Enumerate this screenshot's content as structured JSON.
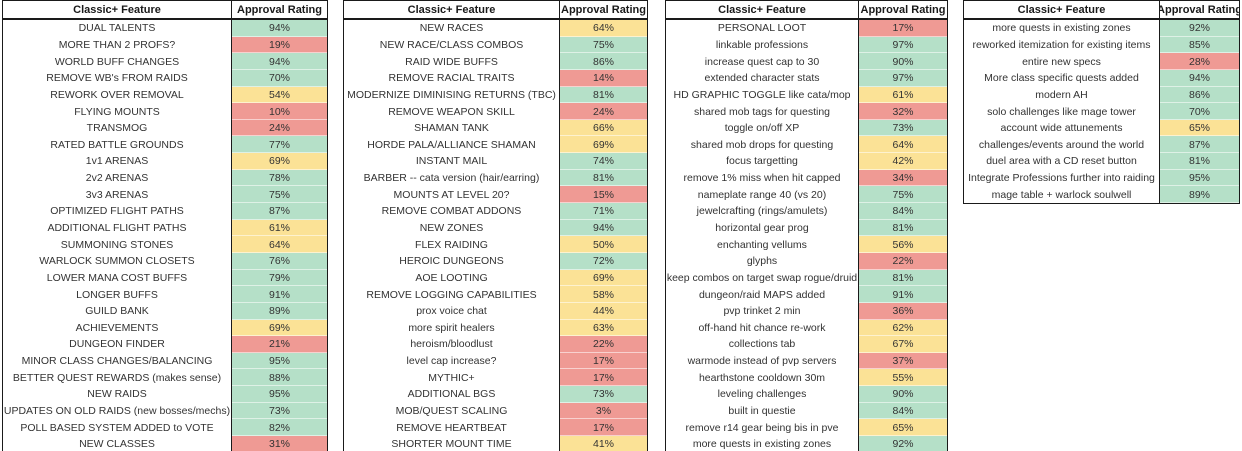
{
  "columns": {
    "feature": "Classic+ Feature",
    "approval": "Approval Rating"
  },
  "colors": {
    "approve_high": "#b5e0c8",
    "approve_mid": "#fbe296",
    "approve_low": "#ef9a94",
    "border": "#1a1a1a",
    "text": "#333333"
  },
  "thresholds": {
    "high_min": 70,
    "mid_min": 40
  },
  "tables": [
    {
      "rows": [
        {
          "feature": "DUAL TALENTS",
          "approval": "94%"
        },
        {
          "feature": "MORE THAN 2 PROFS?",
          "approval": "19%"
        },
        {
          "feature": "WORLD BUFF CHANGES",
          "approval": "94%"
        },
        {
          "feature": "REMOVE WB's FROM RAIDS",
          "approval": "70%"
        },
        {
          "feature": "REWORK OVER REMOVAL",
          "approval": "54%"
        },
        {
          "feature": "FLYING MOUNTS",
          "approval": "10%"
        },
        {
          "feature": "TRANSMOG",
          "approval": "24%"
        },
        {
          "feature": "RATED BATTLE GROUNDS",
          "approval": "77%"
        },
        {
          "feature": "1v1 ARENAS",
          "approval": "69%"
        },
        {
          "feature": "2v2 ARENAS",
          "approval": "78%"
        },
        {
          "feature": "3v3 ARENAS",
          "approval": "75%"
        },
        {
          "feature": "OPTIMIZED FLIGHT PATHS",
          "approval": "87%"
        },
        {
          "feature": "ADDITIONAL FLIGHT PATHS",
          "approval": "61%"
        },
        {
          "feature": "SUMMONING STONES",
          "approval": "64%"
        },
        {
          "feature": "WARLOCK SUMMON CLOSETS",
          "approval": "76%"
        },
        {
          "feature": "LOWER MANA COST BUFFS",
          "approval": "79%"
        },
        {
          "feature": "LONGER BUFFS",
          "approval": "91%"
        },
        {
          "feature": "GUILD BANK",
          "approval": "89%"
        },
        {
          "feature": "ACHIEVEMENTS",
          "approval": "69%"
        },
        {
          "feature": "DUNGEON FINDER",
          "approval": "21%"
        },
        {
          "feature": "MINOR CLASS CHANGES/BALANCING",
          "approval": "95%"
        },
        {
          "feature": "BETTER QUEST REWARDS (makes sense)",
          "approval": "88%"
        },
        {
          "feature": "NEW RAIDS",
          "approval": "95%"
        },
        {
          "feature": "UPDATES ON OLD RAIDS (new bosses/mechs)",
          "approval": "73%"
        },
        {
          "feature": "POLL BASED SYSTEM ADDED to VOTE",
          "approval": "82%"
        },
        {
          "feature": "NEW CLASSES",
          "approval": "31%"
        }
      ]
    },
    {
      "rows": [
        {
          "feature": "NEW RACES",
          "approval": "64%"
        },
        {
          "feature": "NEW RACE/CLASS COMBOS",
          "approval": "75%"
        },
        {
          "feature": "RAID WIDE BUFFS",
          "approval": "86%"
        },
        {
          "feature": "REMOVE RACIAL TRAITS",
          "approval": "14%"
        },
        {
          "feature": "MODERNIZE DIMINISING RETURNS (TBC)",
          "approval": "81%"
        },
        {
          "feature": "REMOVE WEAPON SKILL",
          "approval": "24%"
        },
        {
          "feature": "SHAMAN TANK",
          "approval": "66%"
        },
        {
          "feature": "HORDE PALA/ALLIANCE SHAMAN",
          "approval": "69%"
        },
        {
          "feature": "INSTANT MAIL",
          "approval": "74%"
        },
        {
          "feature": "BARBER -- cata version (hair/earring)",
          "approval": "81%"
        },
        {
          "feature": "MOUNTS AT LEVEL 20?",
          "approval": "15%"
        },
        {
          "feature": "REMOVE COMBAT ADDONS",
          "approval": "71%"
        },
        {
          "feature": "NEW ZONES",
          "approval": "94%"
        },
        {
          "feature": "FLEX RAIDING",
          "approval": "50%"
        },
        {
          "feature": "HEROIC DUNGEONS",
          "approval": "72%"
        },
        {
          "feature": "AOE LOOTING",
          "approval": "69%"
        },
        {
          "feature": "REMOVE LOGGING CAPABILITIES",
          "approval": "58%"
        },
        {
          "feature": "prox voice chat",
          "approval": "44%"
        },
        {
          "feature": "more spirit healers",
          "approval": "63%"
        },
        {
          "feature": "heroism/bloodlust",
          "approval": "22%"
        },
        {
          "feature": "level cap increase?",
          "approval": "17%"
        },
        {
          "feature": "MYTHIC+",
          "approval": "17%"
        },
        {
          "feature": "ADDITIONAL BGS",
          "approval": "73%"
        },
        {
          "feature": "MOB/QUEST SCALING",
          "approval": "3%"
        },
        {
          "feature": "REMOVE HEARTBEAT",
          "approval": "17%"
        },
        {
          "feature": "SHORTER MOUNT TIME",
          "approval": "41%"
        }
      ]
    },
    {
      "rows": [
        {
          "feature": "PERSONAL LOOT",
          "approval": "17%"
        },
        {
          "feature": "linkable professions",
          "approval": "97%"
        },
        {
          "feature": "increase quest cap to 30",
          "approval": "90%"
        },
        {
          "feature": "extended character stats",
          "approval": "97%"
        },
        {
          "feature": "HD GRAPHIC TOGGLE like cata/mop",
          "approval": "61%"
        },
        {
          "feature": "shared mob tags for questing",
          "approval": "32%"
        },
        {
          "feature": "toggle on/off XP",
          "approval": "73%"
        },
        {
          "feature": "shared mob drops for questing",
          "approval": "64%"
        },
        {
          "feature": "focus targetting",
          "approval": "42%"
        },
        {
          "feature": "remove 1% miss when hit capped",
          "approval": "34%"
        },
        {
          "feature": "nameplate range 40 (vs 20)",
          "approval": "75%"
        },
        {
          "feature": "jewelcrafting (rings/amulets)",
          "approval": "84%"
        },
        {
          "feature": "horizontal gear prog",
          "approval": "81%"
        },
        {
          "feature": "enchanting vellums",
          "approval": "56%"
        },
        {
          "feature": "glyphs",
          "approval": "22%"
        },
        {
          "feature": "keep combos on target swap rogue/druid",
          "approval": "81%"
        },
        {
          "feature": "dungeon/raid MAPS added",
          "approval": "91%"
        },
        {
          "feature": "pvp trinket 2 min",
          "approval": "36%"
        },
        {
          "feature": "off-hand hit chance re-work",
          "approval": "62%"
        },
        {
          "feature": "collections tab",
          "approval": "67%"
        },
        {
          "feature": "warmode instead of pvp servers",
          "approval": "37%"
        },
        {
          "feature": "hearthstone cooldown 30m",
          "approval": "55%"
        },
        {
          "feature": "leveling challenges",
          "approval": "90%"
        },
        {
          "feature": "built in questie",
          "approval": "84%"
        },
        {
          "feature": "remove r14 gear being bis in pve",
          "approval": "65%"
        },
        {
          "feature": "more quests in existing zones",
          "approval": "92%"
        }
      ]
    },
    {
      "rows": [
        {
          "feature": "more quests in existing zones",
          "approval": "92%"
        },
        {
          "feature": "reworked itemization for existing items",
          "approval": "85%"
        },
        {
          "feature": "entire new specs",
          "approval": "28%"
        },
        {
          "feature": "More class specific quests added",
          "approval": "94%"
        },
        {
          "feature": "modern AH",
          "approval": "86%"
        },
        {
          "feature": "solo challenges like mage tower",
          "approval": "70%"
        },
        {
          "feature": "account wide attunements",
          "approval": "65%"
        },
        {
          "feature": "challenges/events around the world",
          "approval": "87%"
        },
        {
          "feature": "duel area with a CD reset button",
          "approval": "81%"
        },
        {
          "feature": "Integrate Professions further into raiding",
          "approval": "95%"
        },
        {
          "feature": "mage table + warlock soulwell",
          "approval": "89%"
        }
      ]
    }
  ]
}
